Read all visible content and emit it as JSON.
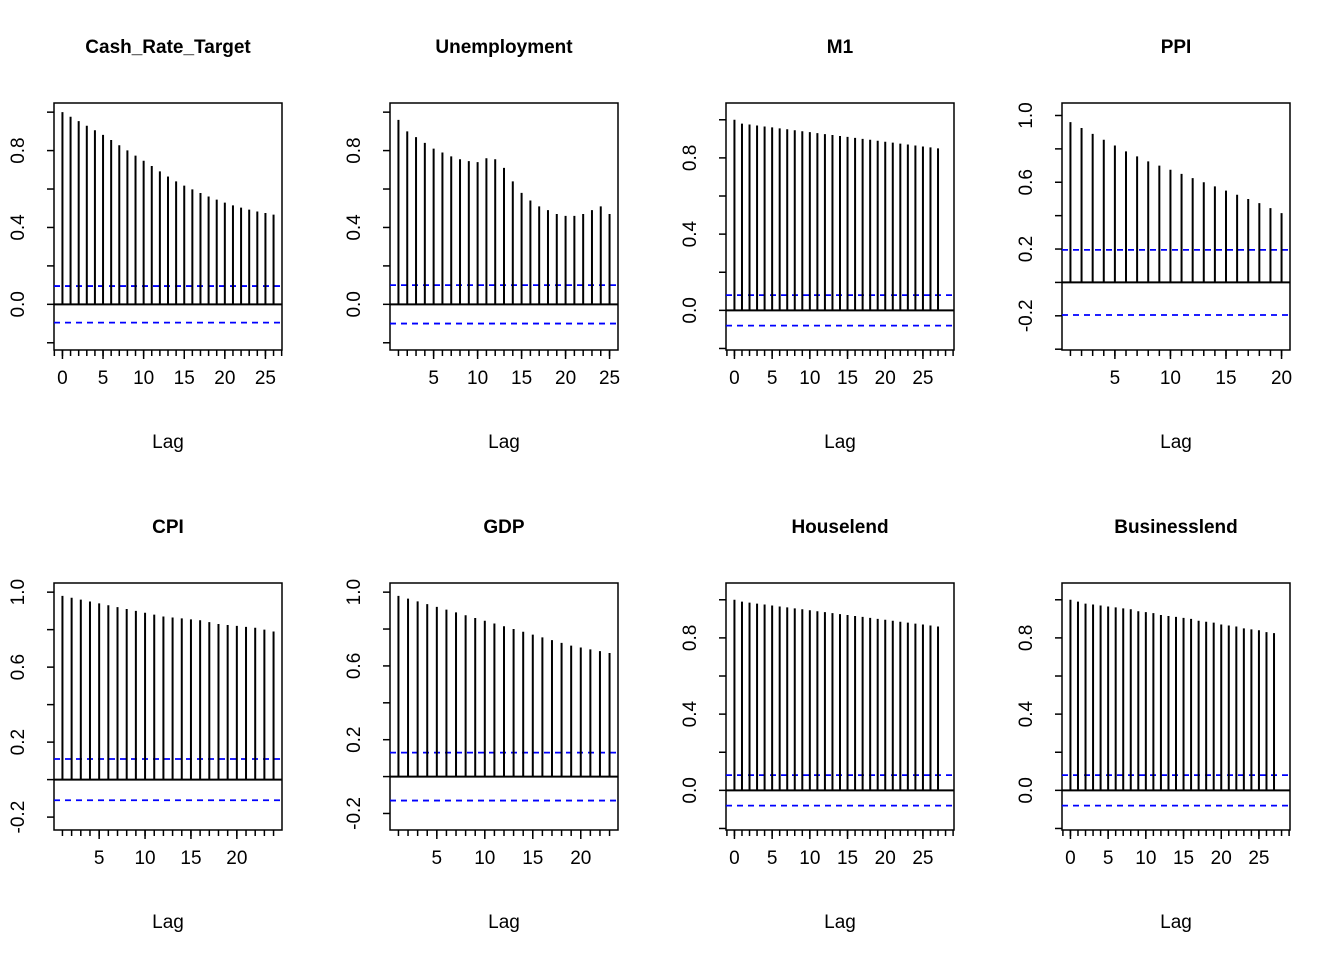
{
  "chart_data": [
    {
      "type": "bar",
      "title": "Cash_Rate_Target",
      "xlabel": "Lag",
      "ylabel": "",
      "x": [
        0,
        1,
        2,
        3,
        4,
        5,
        6,
        7,
        8,
        9,
        10,
        11,
        12,
        13,
        14,
        15,
        16,
        17,
        18,
        19,
        20,
        21,
        22,
        23,
        24,
        25,
        26
      ],
      "values": [
        1.0,
        0.976,
        0.953,
        0.929,
        0.906,
        0.882,
        0.855,
        0.828,
        0.801,
        0.774,
        0.747,
        0.72,
        0.692,
        0.665,
        0.64,
        0.618,
        0.598,
        0.579,
        0.561,
        0.545,
        0.529,
        0.515,
        0.503,
        0.493,
        0.483,
        0.475,
        0.467
      ],
      "ci": 0.095,
      "xlim": [
        0,
        26
      ],
      "ylim": [
        -0.19,
        1.0
      ],
      "xticks": [
        0,
        5,
        10,
        15,
        20,
        25
      ],
      "yticks": [
        0.0,
        0.4,
        0.8
      ],
      "ci_color": "#0000ff",
      "grid": false
    },
    {
      "type": "bar",
      "title": "Unemployment",
      "xlabel": "Lag",
      "ylabel": "",
      "x": [
        1,
        2,
        3,
        4,
        5,
        6,
        7,
        8,
        9,
        10,
        11,
        12,
        13,
        14,
        15,
        16,
        17,
        18,
        19,
        20,
        21,
        22,
        23,
        24,
        25
      ],
      "values": [
        0.96,
        0.9,
        0.87,
        0.84,
        0.81,
        0.79,
        0.77,
        0.755,
        0.745,
        0.74,
        0.76,
        0.755,
        0.71,
        0.64,
        0.58,
        0.54,
        0.51,
        0.49,
        0.47,
        0.46,
        0.46,
        0.47,
        0.49,
        0.51,
        0.47
      ],
      "ci": 0.1,
      "xlim": [
        1,
        25
      ],
      "ylim": [
        -0.19,
        1.0
      ],
      "xticks": [
        5,
        10,
        15,
        20,
        25
      ],
      "yticks": [
        0.0,
        0.4,
        0.8
      ],
      "ci_color": "#0000ff",
      "grid": false
    },
    {
      "type": "bar",
      "title": "M1",
      "xlabel": "Lag",
      "ylabel": "",
      "x": [
        0,
        1,
        2,
        3,
        4,
        5,
        6,
        7,
        8,
        9,
        10,
        11,
        12,
        13,
        14,
        15,
        16,
        17,
        18,
        19,
        20,
        21,
        22,
        23,
        24,
        25,
        26,
        27
      ],
      "values": [
        1.0,
        0.98,
        0.975,
        0.97,
        0.965,
        0.96,
        0.955,
        0.95,
        0.945,
        0.94,
        0.935,
        0.93,
        0.925,
        0.92,
        0.915,
        0.91,
        0.905,
        0.9,
        0.895,
        0.89,
        0.885,
        0.88,
        0.875,
        0.87,
        0.865,
        0.86,
        0.855,
        0.85
      ],
      "ci": 0.08,
      "xlim": [
        0,
        28
      ],
      "ylim": [
        -0.16,
        1.04
      ],
      "xticks": [
        0,
        5,
        10,
        15,
        20,
        25
      ],
      "yticks": [
        0.0,
        0.4,
        0.8
      ],
      "ci_color": "#0000ff",
      "grid": false
    },
    {
      "type": "bar",
      "title": "PPI",
      "xlabel": "Lag",
      "ylabel": "",
      "x": [
        1,
        2,
        3,
        4,
        5,
        6,
        7,
        8,
        9,
        10,
        11,
        12,
        13,
        14,
        15,
        16,
        17,
        18,
        19,
        20
      ],
      "values": [
        0.96,
        0.925,
        0.89,
        0.855,
        0.82,
        0.785,
        0.755,
        0.725,
        0.7,
        0.675,
        0.65,
        0.625,
        0.6,
        0.575,
        0.55,
        0.525,
        0.5,
        0.475,
        0.445,
        0.415
      ],
      "ci": 0.195,
      "xlim": [
        1,
        20
      ],
      "ylim": [
        -0.35,
        1.02
      ],
      "xticks": [
        5,
        10,
        15,
        20
      ],
      "yticks": [
        -0.2,
        0.2,
        0.6,
        1.0
      ],
      "ci_color": "#0000ff",
      "grid": false
    },
    {
      "type": "bar",
      "title": "CPI",
      "xlabel": "Lag",
      "ylabel": "",
      "x": [
        1,
        2,
        3,
        4,
        5,
        6,
        7,
        8,
        9,
        10,
        11,
        12,
        13,
        14,
        15,
        16,
        17,
        18,
        19,
        20,
        21,
        22,
        23,
        24
      ],
      "values": [
        0.98,
        0.97,
        0.96,
        0.95,
        0.94,
        0.93,
        0.92,
        0.91,
        0.9,
        0.89,
        0.88,
        0.87,
        0.865,
        0.86,
        0.855,
        0.85,
        0.84,
        0.83,
        0.825,
        0.82,
        0.815,
        0.81,
        0.8,
        0.79
      ],
      "ci": 0.11,
      "xlim": [
        1,
        24
      ],
      "ylim": [
        -0.22,
        1.0
      ],
      "xticks": [
        5,
        10,
        15,
        20
      ],
      "yticks": [
        -0.2,
        0.2,
        0.6,
        1.0
      ],
      "ci_color": "#0000ff",
      "grid": false
    },
    {
      "type": "bar",
      "title": "GDP",
      "xlabel": "Lag",
      "ylabel": "",
      "x": [
        1,
        2,
        3,
        4,
        5,
        6,
        7,
        8,
        9,
        10,
        11,
        12,
        13,
        14,
        15,
        16,
        17,
        18,
        19,
        20,
        21,
        22,
        23
      ],
      "values": [
        0.98,
        0.965,
        0.95,
        0.935,
        0.92,
        0.905,
        0.89,
        0.875,
        0.86,
        0.845,
        0.83,
        0.815,
        0.8,
        0.785,
        0.77,
        0.755,
        0.74,
        0.725,
        0.71,
        0.7,
        0.69,
        0.68,
        0.67
      ],
      "ci": 0.13,
      "xlim": [
        1,
        23
      ],
      "ylim": [
        -0.24,
        1.0
      ],
      "xticks": [
        5,
        10,
        15,
        20
      ],
      "yticks": [
        -0.2,
        0.2,
        0.6,
        1.0
      ],
      "ci_color": "#0000ff",
      "grid": false
    },
    {
      "type": "bar",
      "title": "Houselend",
      "xlabel": "Lag",
      "ylabel": "",
      "x": [
        0,
        1,
        2,
        3,
        4,
        5,
        6,
        7,
        8,
        9,
        10,
        11,
        12,
        13,
        14,
        15,
        16,
        17,
        18,
        19,
        20,
        21,
        22,
        23,
        24,
        25,
        26,
        27
      ],
      "values": [
        1.0,
        0.99,
        0.985,
        0.98,
        0.975,
        0.97,
        0.965,
        0.96,
        0.955,
        0.95,
        0.945,
        0.94,
        0.935,
        0.93,
        0.925,
        0.92,
        0.915,
        0.91,
        0.905,
        0.9,
        0.895,
        0.89,
        0.885,
        0.88,
        0.875,
        0.87,
        0.865,
        0.86
      ],
      "ci": 0.08,
      "xlim": [
        0,
        28
      ],
      "ylim": [
        -0.16,
        1.04
      ],
      "xticks": [
        0,
        5,
        10,
        15,
        20,
        25
      ],
      "yticks": [
        0.0,
        0.4,
        0.8
      ],
      "ci_color": "#0000ff",
      "grid": false
    },
    {
      "type": "bar",
      "title": "Businesslend",
      "xlabel": "Lag",
      "ylabel": "",
      "x": [
        0,
        1,
        2,
        3,
        4,
        5,
        6,
        7,
        8,
        9,
        10,
        11,
        12,
        13,
        14,
        15,
        16,
        17,
        18,
        19,
        20,
        21,
        22,
        23,
        24,
        25,
        26,
        27
      ],
      "values": [
        1.0,
        0.99,
        0.98,
        0.975,
        0.97,
        0.965,
        0.96,
        0.955,
        0.95,
        0.94,
        0.935,
        0.93,
        0.92,
        0.915,
        0.91,
        0.905,
        0.9,
        0.89,
        0.885,
        0.88,
        0.87,
        0.865,
        0.86,
        0.85,
        0.845,
        0.84,
        0.83,
        0.825
      ],
      "ci": 0.08,
      "xlim": [
        0,
        28
      ],
      "ylim": [
        -0.16,
        1.04
      ],
      "xticks": [
        0,
        5,
        10,
        15,
        20,
        25
      ],
      "yticks": [
        0.0,
        0.4,
        0.8
      ],
      "ci_color": "#0000ff",
      "grid": false
    }
  ]
}
